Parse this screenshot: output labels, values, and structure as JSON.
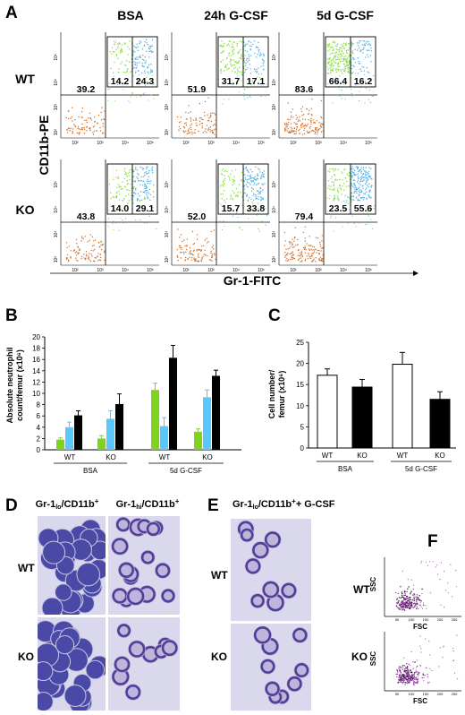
{
  "panel_letters": {
    "a": "A",
    "b": "B",
    "c": "C",
    "d": "D",
    "e": "E",
    "f": "F"
  },
  "panel_a": {
    "columns": [
      "BSA",
      "24h G-CSF",
      "5d G-CSF"
    ],
    "rows": [
      "WT",
      "KO"
    ],
    "y_axis_label": "CD11b-PE",
    "x_axis_label": "Gr-1-FITC",
    "tick_exponents": [
      "10²",
      "10³",
      "10⁴",
      "10⁵"
    ],
    "plots": [
      {
        "row": "WT",
        "column": "BSA",
        "gate_left": "14.2",
        "gate_right": "24.3",
        "lower": "39.2"
      },
      {
        "row": "WT",
        "column": "24h G-CSF",
        "gate_left": "31.7",
        "gate_right": "17.1",
        "lower": "51.9"
      },
      {
        "row": "WT",
        "column": "5d G-CSF",
        "gate_left": "66.4",
        "gate_right": "16.2",
        "lower": "83.6"
      },
      {
        "row": "KO",
        "column": "BSA",
        "gate_left": "14.0",
        "gate_right": "29.1",
        "lower": "43.8"
      },
      {
        "row": "KO",
        "column": "24h G-CSF",
        "gate_left": "15.7",
        "gate_right": "33.8",
        "lower": "52.0"
      },
      {
        "row": "KO",
        "column": "5d G-CSF",
        "gate_left": "23.5",
        "gate_right": "55.6",
        "lower": "79.4"
      }
    ],
    "colors": {
      "gate_left": "#8fe04a",
      "gate_right": "#5ab4e6",
      "outside": "#d2691e"
    }
  },
  "chart_data": [
    {
      "type": "bar",
      "panel": "B",
      "ylabel_line1": "Absolute neutrophil",
      "ylabel_line2": "count/femur (x10⁶)",
      "ylim": [
        0,
        20
      ],
      "yticks": [
        "0",
        "2",
        "4",
        "6",
        "8",
        "10",
        "12",
        "14",
        "16",
        "18",
        "20"
      ],
      "groups": [
        "WT",
        "KO",
        "WT",
        "KO"
      ],
      "conditions": [
        "BSA",
        "5d G-CSF"
      ],
      "series": [
        {
          "color": "#7ed321",
          "values": [
            1.8,
            2.0,
            10.6,
            3.2
          ],
          "errors": [
            0.3,
            0.5,
            1.2,
            0.5
          ]
        },
        {
          "color": "#5ac8fa",
          "values": [
            4.0,
            5.5,
            4.2,
            9.3
          ],
          "errors": [
            0.9,
            1.4,
            1.5,
            1.3
          ]
        },
        {
          "color": "#000000",
          "values": [
            6.1,
            8.1,
            16.3,
            13.1
          ],
          "errors": [
            0.8,
            1.8,
            2.2,
            1.0
          ]
        }
      ]
    },
    {
      "type": "bar",
      "panel": "C",
      "ylabel_line1": "Cell number/",
      "ylabel_line2": "femur (x10⁶)",
      "ylim": [
        0,
        25
      ],
      "yticks": [
        "0",
        "5",
        "10",
        "15",
        "20",
        "25"
      ],
      "categories": [
        "WT",
        "KO",
        "WT",
        "KO"
      ],
      "conditions": [
        "BSA",
        "5d G-CSF"
      ],
      "values": [
        17.2,
        14.4,
        19.8,
        11.5
      ],
      "errors": [
        1.5,
        1.8,
        2.8,
        1.8
      ],
      "colors": [
        "#ffffff",
        "#000000",
        "#ffffff",
        "#000000"
      ]
    }
  ],
  "panel_d": {
    "col1": "Gr-1lo/CD11b+",
    "col2": "Gr-1hi/CD11b+",
    "rows": [
      "WT",
      "KO"
    ]
  },
  "panel_e": {
    "title": "Gr-1lo/CD11b+ G-CSF",
    "rows": [
      "WT",
      "KO"
    ]
  },
  "panel_f": {
    "rows": [
      "WT",
      "KO"
    ],
    "ylabel": "SSC",
    "xlabel": "FSC",
    "ticks": [
      "50",
      "100",
      "150",
      "200",
      "250"
    ]
  }
}
